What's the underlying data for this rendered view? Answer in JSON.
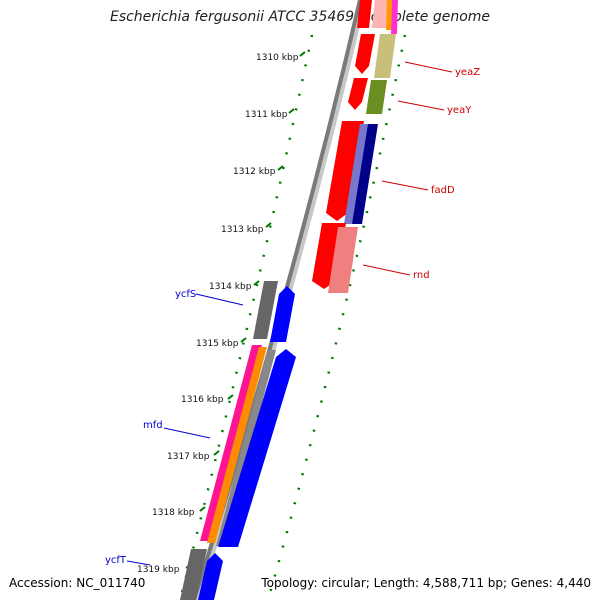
{
  "title": "Escherichia fergusonii ATCC 35469, complete genome",
  "footer": {
    "accession": "Accession: NC_011740",
    "summary": "Topology: circular; Length: 4,588,711 bp; Genes: 4,440"
  },
  "ticks": [
    {
      "label": "1310 kbp",
      "pos": 1310.0
    },
    {
      "label": "1311 kbp",
      "pos": 1311.0
    },
    {
      "label": "1312 kbp",
      "pos": 1312.0
    },
    {
      "label": "1313 kbp",
      "pos": 1313.0
    },
    {
      "label": "1314 kbp",
      "pos": 1314.0
    },
    {
      "label": "1315 kbp",
      "pos": 1315.0
    },
    {
      "label": "1316 kbp",
      "pos": 1316.0
    },
    {
      "label": "1317 kbp",
      "pos": 1317.0
    },
    {
      "label": "1318 kbp",
      "pos": 1318.0
    },
    {
      "label": "1319 kbp",
      "pos": 1319.0
    }
  ],
  "genes": [
    {
      "name": "yeaZ",
      "strand": "reverse",
      "color": "#cc0000"
    },
    {
      "name": "yeaY",
      "strand": "reverse",
      "color": "#cc0000"
    },
    {
      "name": "fadD",
      "strand": "reverse",
      "color": "#cc0000"
    },
    {
      "name": "rnd",
      "strand": "reverse",
      "color": "#cc0000"
    },
    {
      "name": "ycfS",
      "strand": "forward",
      "color": "#0000cc"
    },
    {
      "name": "mfd",
      "strand": "forward",
      "color": "#0000cc"
    },
    {
      "name": "ycfT",
      "strand": "forward",
      "color": "#0000cc"
    }
  ],
  "colors": {
    "backbone": "#7a7a7a",
    "tick_mark": "#007700",
    "forward_cds": "#0000ff",
    "reverse_cds": "#ff0000",
    "forward_label": "#0000cc",
    "reverse_label": "#cc0000"
  }
}
